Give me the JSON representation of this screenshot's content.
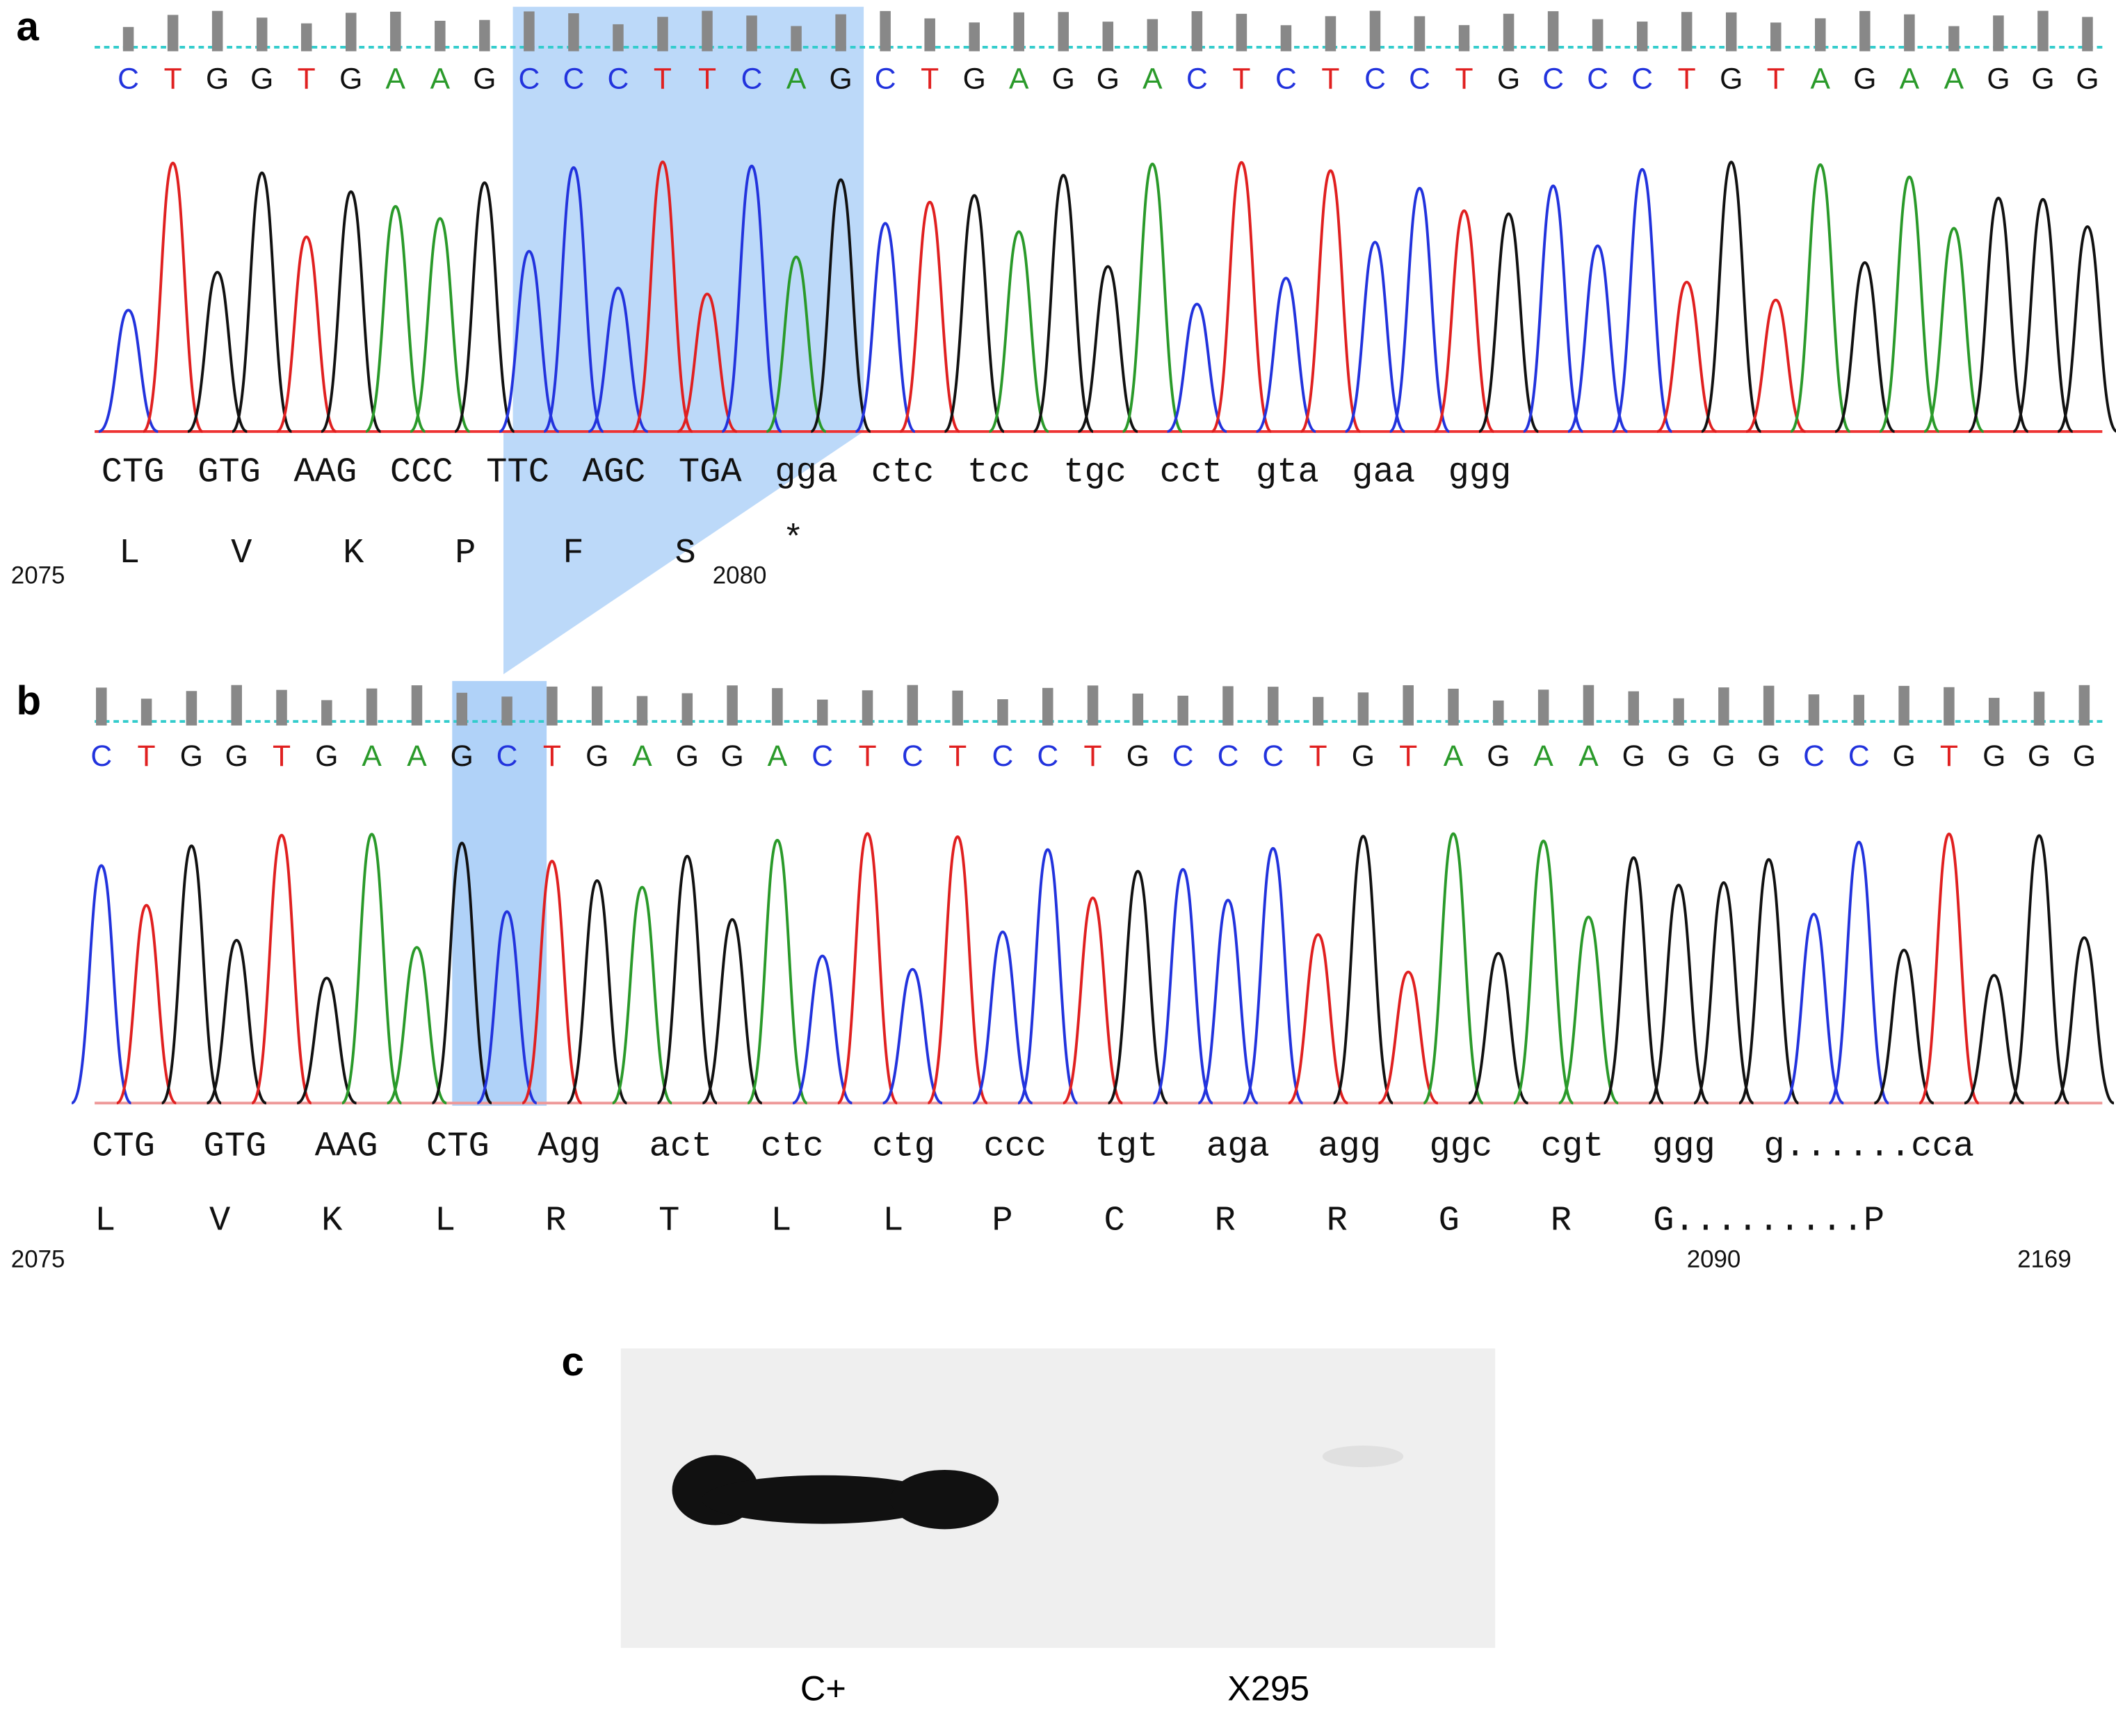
{
  "panels": [
    {
      "label": "a",
      "bases": [
        "C",
        "T",
        "G",
        "G",
        "T",
        "G",
        "A",
        "A",
        "G",
        "C",
        "C",
        "C",
        "T",
        "T",
        "C",
        "A",
        "G",
        "C",
        "T",
        "G",
        "A",
        "G",
        "G",
        "A",
        "C",
        "T",
        "C",
        "T",
        "C",
        "C",
        "T",
        "G",
        "C",
        "C",
        "C",
        "T",
        "G",
        "T",
        "A",
        "G",
        "A",
        "A",
        "G",
        "G",
        "G"
      ],
      "codons": [
        "CTG",
        "GTG",
        "AAG",
        "CCC",
        "TTC",
        "AGC",
        "TGA",
        "gga",
        "ctc",
        "tcc",
        "tgc",
        "cct",
        "gta",
        "gaa",
        "ggg"
      ],
      "amino_acids": [
        "L",
        "V",
        "K",
        "P",
        "F",
        "S",
        "*"
      ],
      "positions": [
        "2075",
        "2080"
      ]
    },
    {
      "label": "b",
      "bases": [
        "C",
        "T",
        "G",
        "G",
        "T",
        "G",
        "A",
        "A",
        "G",
        "C",
        "T",
        "G",
        "A",
        "G",
        "G",
        "A",
        "C",
        "T",
        "C",
        "T",
        "C",
        "C",
        "T",
        "G",
        "C",
        "C",
        "C",
        "T",
        "G",
        "T",
        "A",
        "G",
        "A",
        "A",
        "G",
        "G",
        "G",
        "G",
        "C",
        "C",
        "G",
        "T",
        "G",
        "G",
        "G"
      ],
      "codons": [
        "CTG",
        "GTG",
        "AAG",
        "CTG",
        "Agg",
        "act",
        "ctc",
        "ctg",
        "ccc",
        "tgt",
        "aga",
        "agg",
        "ggc",
        "cgt",
        "ggg",
        "g......cca"
      ],
      "amino_acids": [
        "L",
        "V",
        "K",
        "L",
        "R",
        "T",
        "L",
        "L",
        "P",
        "C",
        "R",
        "R",
        "G",
        "R",
        "G.........P"
      ],
      "positions": [
        "2075",
        "2090",
        "2169"
      ]
    },
    {
      "label": "c",
      "lanes": [
        "C+",
        "X295"
      ]
    }
  ]
}
